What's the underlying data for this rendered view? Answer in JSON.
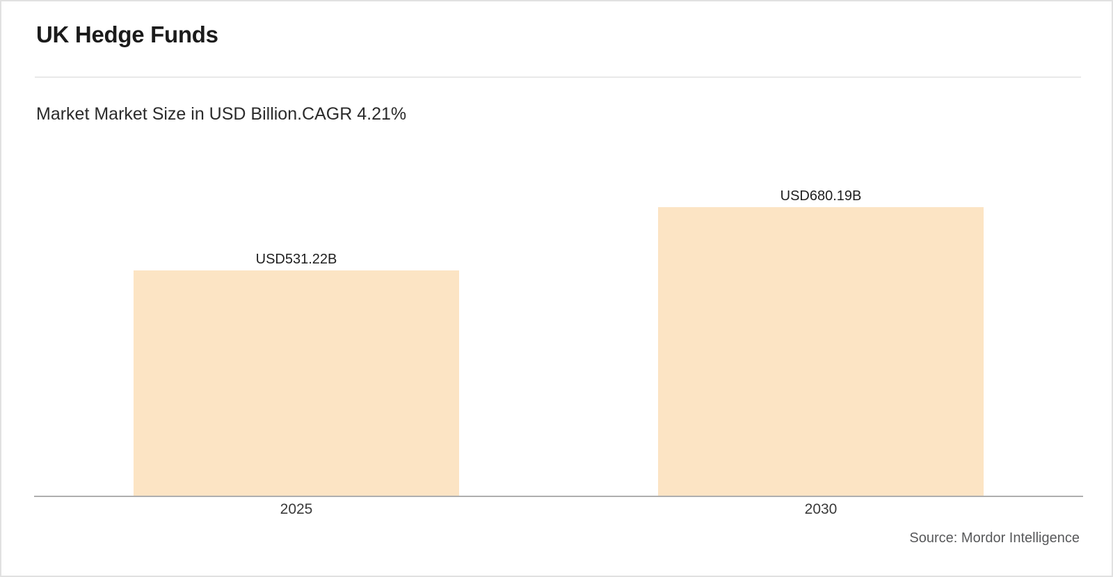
{
  "header": {
    "title": "UK Hedge Funds",
    "subtitle": "Market Market Size in USD Billion.CAGR 4.21%"
  },
  "chart_data": {
    "type": "bar",
    "categories": [
      "2025",
      "2030"
    ],
    "values": [
      531.22,
      680.19
    ],
    "value_labels": [
      "USD531.22B",
      "USD680.19B"
    ],
    "title": "UK Hedge Funds",
    "subtitle": "Market Market Size in USD Billion.CAGR 4.21%",
    "xlabel": "",
    "ylabel": "",
    "ylim": [
      0,
      760
    ],
    "grid": false,
    "legend": false,
    "unit": "USD Billion",
    "cagr_percent": 4.21,
    "bar_color": "#fce4c4"
  },
  "footer": {
    "source": "Source: Mordor Intelligence"
  }
}
